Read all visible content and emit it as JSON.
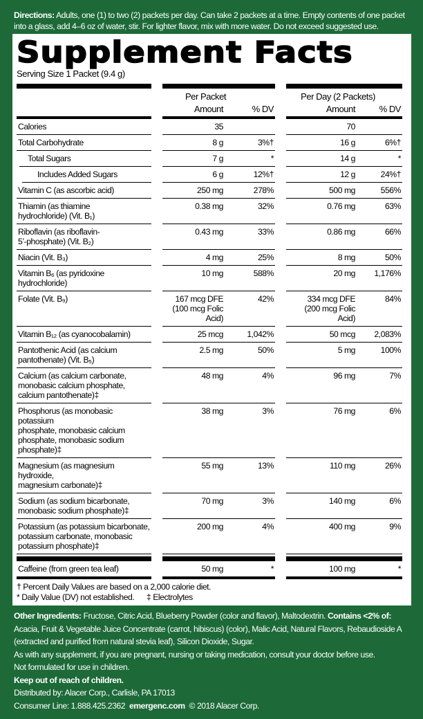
{
  "directions": {
    "label": "Directions:",
    "text": " Adults, one (1) to two (2) packets per day. Can take 2 packets at a time. Empty contents of one packet into a glass, add 4–6 oz of water, stir. For lighter flavor, mix with more water. Do not exceed suggested use."
  },
  "facts": {
    "title": "Supplement Facts",
    "serving": "Serving Size 1 Packet (9.4 g)",
    "header": {
      "per_packet": "Per Packet",
      "per_day": "Per Day (2 Packets)",
      "amount": "Amount",
      "dv": "% DV"
    },
    "rows": [
      {
        "name": "Calories",
        "a1": "35",
        "d1": "",
        "a2": "70",
        "d2": ""
      },
      {
        "name": "Total Carbohydrate",
        "a1": "8 g",
        "d1": "3%†",
        "a2": "16 g",
        "d2": "6%†"
      },
      {
        "name": "Total Sugars",
        "indent": 1,
        "a1": "7 g",
        "d1": "*",
        "a2": "14 g",
        "d2": "*"
      },
      {
        "name": "Includes Added Sugars",
        "indent": 2,
        "a1": "6 g",
        "d1": "12%†",
        "a2": "12 g",
        "d2": "24%†"
      },
      {
        "name": "Vitamin C (as ascorbic acid)",
        "a1": "250 mg",
        "d1": "278%",
        "a2": "500 mg",
        "d2": "556%"
      },
      {
        "name": "Thiamin (as thiamine\nhydrochloride) (Vit. B₁)",
        "a1": "0.38 mg",
        "d1": "32%",
        "a2": "0.76 mg",
        "d2": "63%"
      },
      {
        "name": "Riboflavin (as riboflavin-\n5’-phosphate) (Vit. B₂)",
        "a1": "0.43 mg",
        "d1": "33%",
        "a2": "0.86 mg",
        "d2": "66%"
      },
      {
        "name": "Niacin (Vit. B₃)",
        "a1": "4 mg",
        "d1": "25%",
        "a2": "8 mg",
        "d2": "50%"
      },
      {
        "name": "Vitamin B₆ (as pyridoxine\nhydrochloride)",
        "a1": "10 mg",
        "d1": "588%",
        "a2": "20 mg",
        "d2": "1,176%"
      },
      {
        "name": "Folate (Vit. B₉)",
        "a1": "167 mcg DFE\n(100 mcg Folic Acid)",
        "d1": "42%",
        "a2": "334 mcg DFE\n(200 mcg Folic Acid)",
        "d2": "84%"
      },
      {
        "name": "Vitamin B₁₂ (as cyanocobalamin)",
        "a1": "25 mcg",
        "d1": "1,042%",
        "a2": "50 mcg",
        "d2": "2,083%"
      },
      {
        "name": "Pantothenic Acid (as calcium\npantothenate) (Vit. B₅)",
        "a1": "2.5 mg",
        "d1": "50%",
        "a2": "5 mg",
        "d2": "100%"
      },
      {
        "name": "Calcium (as calcium carbonate,\nmonobasic calcium  phosphate,\ncalcium pantothenate)‡",
        "a1": "48 mg",
        "d1": "4%",
        "a2": "96 mg",
        "d2": "7%"
      },
      {
        "name": "Phosphorus (as monobasic potassium\nphosphate, monobasic calcium\nphosphate, monobasic sodium\nphosphate)‡",
        "a1": "38 mg",
        "d1": "3%",
        "a2": "76 mg",
        "d2": "6%"
      },
      {
        "name": "Magnesium (as magnesium hydroxide,\nmagnesium carbonate)‡",
        "a1": "55 mg",
        "d1": "13%",
        "a2": "110 mg",
        "d2": "26%"
      },
      {
        "name": "Sodium (as sodium bicarbonate,\nmonobasic sodium phosphate)‡",
        "a1": "70 mg",
        "d1": "3%",
        "a2": "140 mg",
        "d2": "6%"
      },
      {
        "name": "Potassium (as potassium bicarbonate,\npotassium carbonate, monobasic\npotassium phosphate)‡",
        "a1": "200 mg",
        "d1": "4%",
        "a2": "400 mg",
        "d2": "9%"
      }
    ],
    "caffeine": {
      "name": "Caffeine (from green tea leaf)",
      "a1": "50 mg",
      "d1": "*",
      "a2": "100 mg",
      "d2": "*"
    },
    "footnote1": "† Percent Daily Values are based on a 2,000 calorie diet.",
    "footnote2": "* Daily Value (DV) not established.      ‡ Electrolytes"
  },
  "other": {
    "label": "Other Ingredients:",
    "text": " Fructose, Citric Acid, Blueberry Powder (color and flavor), Maltodextrin. ",
    "contains_label": "Contains <2% of:",
    "contains_text": " Acacia, Fruit & Vegetable Juice Concentrate (carrot, hibiscus) (color), Malic Acid, Natural Flavors, Rebaudioside A (extracted and purified from natural stevia leaf), Silicon Dioxide, Sugar.",
    "warning": "As with any supplement, if you are pregnant, nursing or taking medication, consult your doctor before use.",
    "not_children": "Not formulated for use in children.",
    "keep_out": "Keep out of reach of children.",
    "distributed": "Distributed by: Alacer Corp., Carlisle, PA 17013",
    "consumer": "Consumer Line: 1.888.425.2362  ",
    "website": "emergenc.com",
    "copyright": "  © 2018 Alacer Corp."
  }
}
